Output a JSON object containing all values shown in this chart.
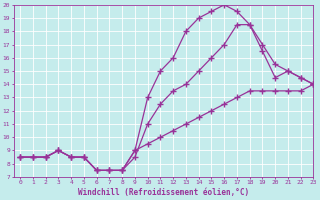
{
  "xlabel": "Windchill (Refroidissement éolien,°C)",
  "ylabel": "",
  "xlim": [
    -0.5,
    23
  ],
  "ylim": [
    7,
    20
  ],
  "xticks": [
    0,
    1,
    2,
    3,
    4,
    5,
    6,
    7,
    8,
    9,
    10,
    11,
    12,
    13,
    14,
    15,
    16,
    17,
    18,
    19,
    20,
    21,
    22,
    23
  ],
  "yticks": [
    7,
    8,
    9,
    10,
    11,
    12,
    13,
    14,
    15,
    16,
    17,
    18,
    19,
    20
  ],
  "background_color": "#c5ecec",
  "grid_color": "#ffffff",
  "line_color": "#993399",
  "line_width": 0.9,
  "marker": "+",
  "marker_size": 4,
  "marker_edge_width": 1.0,
  "curve1_x": [
    0,
    1,
    2,
    3,
    4,
    5,
    6,
    7,
    8,
    9,
    10,
    11,
    12,
    13,
    14,
    15,
    16,
    17,
    18,
    19,
    20,
    21,
    22,
    23
  ],
  "curve1_y": [
    8.5,
    8.5,
    8.5,
    9.0,
    8.5,
    8.5,
    7.5,
    7.5,
    7.5,
    8.5,
    11.0,
    12.5,
    13.5,
    14.0,
    15.0,
    16.0,
    17.0,
    18.5,
    18.5,
    17.0,
    15.5,
    15.0,
    14.5,
    14.0
  ],
  "curve2_x": [
    0,
    1,
    2,
    3,
    4,
    5,
    6,
    7,
    8,
    9,
    10,
    11,
    12,
    13,
    14,
    15,
    16,
    17,
    18,
    19,
    20,
    21,
    22,
    23
  ],
  "curve2_y": [
    8.5,
    8.5,
    8.5,
    9.0,
    8.5,
    8.5,
    7.5,
    7.5,
    7.5,
    9.0,
    13.0,
    15.0,
    16.0,
    18.0,
    19.0,
    19.5,
    20.0,
    19.5,
    18.5,
    16.5,
    14.5,
    15.0,
    14.5,
    14.0
  ],
  "curve3_x": [
    0,
    1,
    2,
    3,
    4,
    5,
    6,
    7,
    8,
    9,
    10,
    11,
    12,
    13,
    14,
    15,
    16,
    17,
    18,
    19,
    20,
    21,
    22,
    23
  ],
  "curve3_y": [
    8.5,
    8.5,
    8.5,
    9.0,
    8.5,
    8.5,
    7.5,
    7.5,
    7.5,
    9.0,
    9.5,
    10.0,
    10.5,
    11.0,
    11.5,
    12.0,
    12.5,
    13.0,
    13.5,
    13.5,
    13.5,
    13.5,
    13.5,
    14.0
  ]
}
